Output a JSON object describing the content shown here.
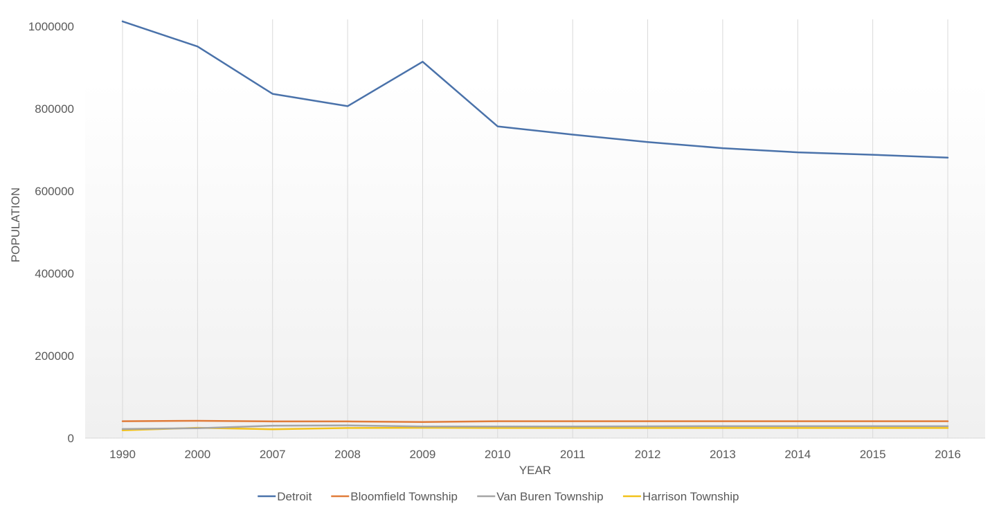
{
  "chart_data": {
    "type": "line",
    "title": "",
    "xlabel": "YEAR",
    "ylabel": "POPULATION",
    "categories": [
      "1990",
      "2000",
      "2007",
      "2008",
      "2009",
      "2010",
      "2011",
      "2012",
      "2013",
      "2014",
      "2015",
      "2016"
    ],
    "yticks": [
      "0",
      "200000",
      "400000",
      "600000",
      "800000",
      "1000000"
    ],
    "ylim": [
      0,
      1000000
    ],
    "grid": "vertical",
    "legend_position": "bottom",
    "series": [
      {
        "name": "Detroit",
        "color": "#4a72aa",
        "values": [
          1012000,
          951000,
          836000,
          806000,
          914000,
          757000,
          737000,
          719000,
          704000,
          694000,
          688000,
          681000
        ]
      },
      {
        "name": "Bloomfield Township",
        "color": "#e07b39",
        "values": [
          41000,
          42000,
          40500,
          40500,
          39000,
          41000,
          41000,
          41000,
          41000,
          41000,
          41000,
          41000
        ]
      },
      {
        "name": "Van Buren Township",
        "color": "#a5a5a5",
        "values": [
          22000,
          24000,
          30000,
          31000,
          28000,
          28000,
          28000,
          28500,
          29000,
          29000,
          29000,
          29000
        ]
      },
      {
        "name": "Harrison Township",
        "color": "#f2c21b",
        "values": [
          19000,
          25000,
          21500,
          24500,
          25000,
          24500,
          24500,
          24500,
          24500,
          24500,
          24500,
          24500
        ]
      }
    ]
  }
}
